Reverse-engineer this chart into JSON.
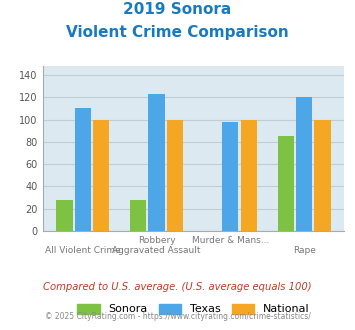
{
  "title_line1": "2019 Sonora",
  "title_line2": "Violent Crime Comparison",
  "title_color": "#1a7abf",
  "sonora_values": [
    28,
    28,
    0,
    85
  ],
  "texas_values": [
    110,
    123,
    98,
    120
  ],
  "national_values": [
    100,
    100,
    100,
    100
  ],
  "sonora_color": "#7dc242",
  "texas_color": "#4da6e8",
  "national_color": "#f5a623",
  "ylim": [
    0,
    148
  ],
  "yticks": [
    0,
    20,
    40,
    60,
    80,
    100,
    120,
    140
  ],
  "grid_color": "#c0cdd6",
  "plot_area_color": "#dce9f0",
  "legend_labels": [
    "Sonora",
    "Texas",
    "National"
  ],
  "top_labels": [
    "",
    "Robbery",
    "Murder & Mans...",
    ""
  ],
  "bot_labels": [
    "All Violent Crime",
    "Aggravated Assault",
    "",
    "Rape"
  ],
  "footnote1": "Compared to U.S. average. (U.S. average equals 100)",
  "footnote2": "© 2025 CityRating.com - https://www.cityrating.com/crime-statistics/",
  "footnote1_color": "#c0392b",
  "footnote2_color": "#888888",
  "bar_width": 0.22,
  "bar_gap": 0.03
}
